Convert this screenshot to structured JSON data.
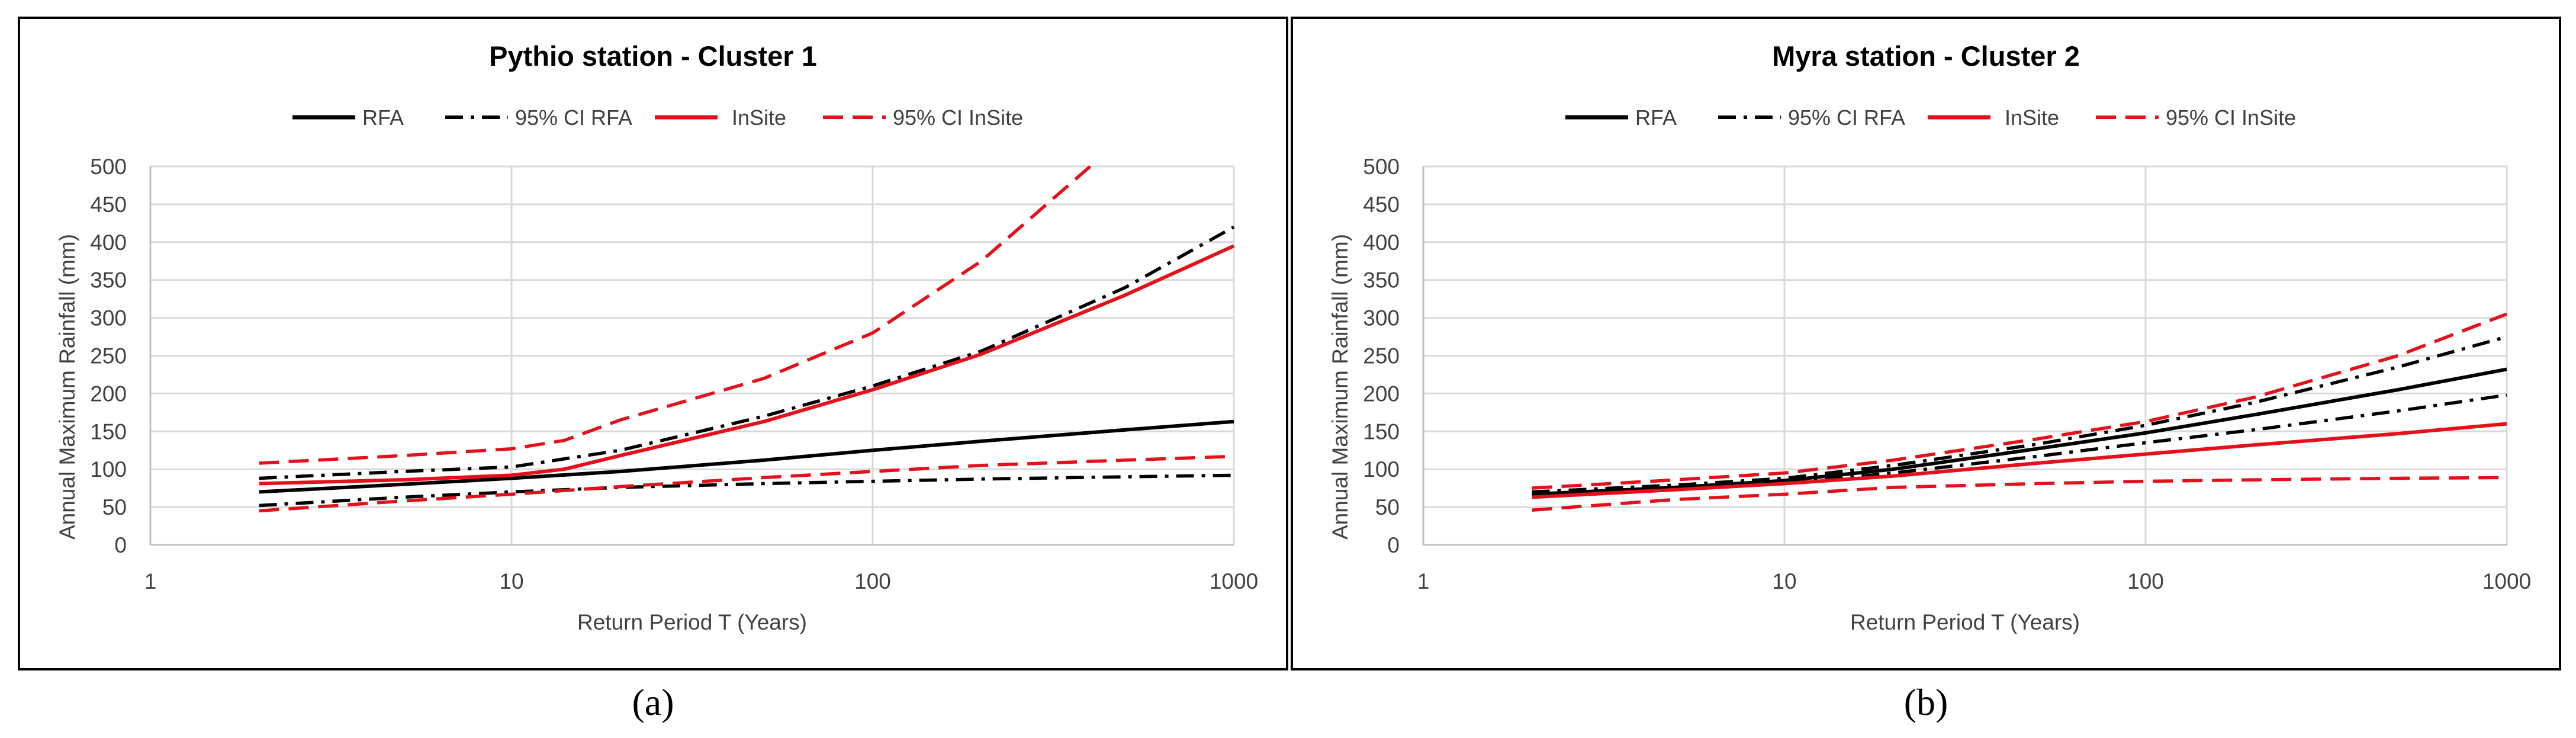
{
  "panel_labels": [
    "(a)",
    "(b)"
  ],
  "legend_labels": [
    "RFA",
    "95% CI RFA",
    "InSite",
    "95% CI InSite"
  ],
  "colors": {
    "rfa": "#000000",
    "insite": "#e3111b",
    "grid": "#d9d9d9",
    "axis": "#bfbfbf",
    "text": "#404040",
    "frame": "#000000"
  },
  "chart_data": [
    {
      "type": "line",
      "title": "Pythio station - Cluster 1",
      "xlabel": "Return Period T (Years)",
      "ylabel": "Annual Maximum Rainfall (mm)",
      "x_scale": "log",
      "xlim": [
        1,
        1000
      ],
      "ylim": [
        0,
        500
      ],
      "x_ticks": [
        1,
        10,
        100,
        1000
      ],
      "y_ticks": [
        0,
        50,
        100,
        150,
        200,
        250,
        300,
        350,
        400,
        450,
        500
      ],
      "grid": true,
      "legend_position": "top",
      "series": [
        {
          "name": "RFA",
          "color": "#000000",
          "dash": "solid",
          "x": [
            2,
            5,
            10,
            20,
            50,
            100,
            200,
            500,
            1000
          ],
          "y": [
            70,
            80,
            88,
            97,
            112,
            125,
            137,
            152,
            163
          ]
        },
        {
          "name": "95% CI RFA",
          "color": "#000000",
          "dash": "dashdot",
          "x": [
            2,
            5,
            10,
            20,
            50,
            100,
            200,
            500,
            1000
          ],
          "y": [
            88,
            97,
            103,
            125,
            170,
            210,
            256,
            340,
            420
          ]
        },
        {
          "name": "95% CI RFA",
          "color": "#000000",
          "dash": "dashdot",
          "x": [
            2,
            5,
            10,
            20,
            50,
            100,
            200,
            500,
            1000
          ],
          "y": [
            52,
            63,
            70,
            76,
            81,
            84,
            87,
            90,
            92
          ]
        },
        {
          "name": "InSite",
          "color": "#e3111b",
          "dash": "solid",
          "x": [
            2,
            5,
            10,
            14,
            20,
            50,
            100,
            200,
            500,
            1000
          ],
          "y": [
            81,
            86,
            92,
            100,
            118,
            163,
            205,
            252,
            330,
            395
          ]
        },
        {
          "name": "95% CI InSite",
          "color": "#e3111b",
          "dash": "dashed",
          "x": [
            2,
            5,
            10,
            14,
            20,
            50,
            100,
            200,
            400
          ],
          "y": [
            108,
            118,
            127,
            138,
            165,
            220,
            280,
            375,
            500
          ]
        },
        {
          "name": "95% CI InSite",
          "color": "#e3111b",
          "dash": "dashed",
          "x": [
            2,
            5,
            10,
            20,
            50,
            100,
            200,
            500,
            1000
          ],
          "y": [
            45,
            58,
            67,
            77,
            89,
            97,
            105,
            112,
            117
          ]
        }
      ]
    },
    {
      "type": "line",
      "title": "Myra station - Cluster 2",
      "xlabel": "Return Period T (Years)",
      "ylabel": "Annual Maximum Rainfall (mm)",
      "x_scale": "log",
      "xlim": [
        1,
        1000
      ],
      "ylim": [
        0,
        500
      ],
      "x_ticks": [
        1,
        10,
        100,
        1000
      ],
      "y_ticks": [
        0,
        50,
        100,
        150,
        200,
        250,
        300,
        350,
        400,
        450,
        500
      ],
      "grid": true,
      "legend_position": "top",
      "series": [
        {
          "name": "RFA",
          "color": "#000000",
          "dash": "solid",
          "x": [
            2,
            5,
            10,
            20,
            50,
            100,
            200,
            500,
            1000
          ],
          "y": [
            67,
            76,
            85,
            100,
            127,
            148,
            172,
            205,
            232
          ]
        },
        {
          "name": "95% CI RFA",
          "color": "#000000",
          "dash": "dashdot",
          "x": [
            2,
            5,
            10,
            20,
            50,
            100,
            200,
            500,
            1000
          ],
          "y": [
            70,
            79,
            88,
            105,
            133,
            158,
            188,
            235,
            275
          ]
        },
        {
          "name": "95% CI RFA",
          "color": "#000000",
          "dash": "dashdot",
          "x": [
            2,
            5,
            10,
            20,
            50,
            100,
            200,
            500,
            1000
          ],
          "y": [
            65,
            73,
            81,
            95,
            117,
            135,
            152,
            177,
            198
          ]
        },
        {
          "name": "InSite",
          "color": "#e3111b",
          "dash": "solid",
          "x": [
            2,
            5,
            10,
            20,
            50,
            100,
            200,
            500,
            1000
          ],
          "y": [
            63,
            73,
            81,
            91,
            108,
            120,
            132,
            147,
            160
          ]
        },
        {
          "name": "95% CI InSite",
          "color": "#e3111b",
          "dash": "dashed",
          "x": [
            2,
            5,
            10,
            20,
            50,
            100,
            200,
            500,
            1000
          ],
          "y": [
            75,
            86,
            95,
            112,
            140,
            163,
            195,
            250,
            305
          ]
        },
        {
          "name": "95% CI InSite",
          "color": "#e3111b",
          "dash": "dashed",
          "x": [
            2,
            5,
            10,
            20,
            50,
            100,
            200,
            500,
            1000
          ],
          "y": [
            46,
            60,
            67,
            76,
            81,
            84,
            86,
            88,
            89
          ]
        }
      ]
    }
  ]
}
